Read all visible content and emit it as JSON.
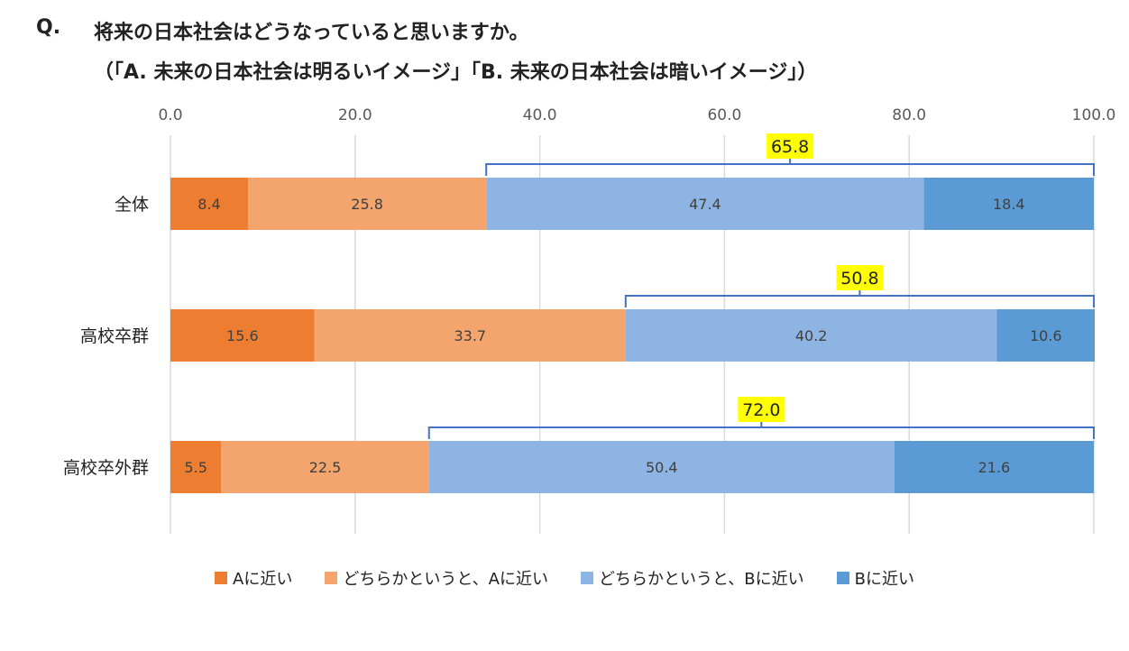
{
  "title": {
    "q_label": "Q.",
    "question": "将来の日本社会はどうなっていると思いますか。",
    "subtitle": "（「A.  未来の日本社会は明るいイメージ」「B.  未来の日本社会は暗いイメージ」）"
  },
  "chart_data": {
    "type": "bar",
    "orientation": "horizontal-stacked",
    "xlim": [
      0,
      100
    ],
    "x_ticks": [
      "0.0",
      "20.0",
      "40.0",
      "60.0",
      "80.0",
      "100.0"
    ],
    "grid": true,
    "categories": [
      "全体",
      "高校卒群",
      "高校卒外群"
    ],
    "series": [
      {
        "name": "Aに近い",
        "color": "#ED7D31",
        "values": [
          8.4,
          15.6,
          5.5
        ]
      },
      {
        "name": "どちらかというと、Aに近い",
        "color": "#F4A46D",
        "values": [
          25.8,
          33.7,
          22.5
        ]
      },
      {
        "name": "どちらかというと、Bに近い",
        "color": "#8DB4E2",
        "values": [
          47.4,
          40.2,
          50.4
        ]
      },
      {
        "name": "Bに近い",
        "color": "#5B9BD5",
        "values": [
          18.4,
          10.6,
          21.6
        ]
      }
    ],
    "annotations": [
      {
        "category": "全体",
        "label": "65.8",
        "from": 34.2,
        "to": 100
      },
      {
        "category": "高校卒群",
        "label": "50.8",
        "from": 49.3,
        "to": 100
      },
      {
        "category": "高校卒外群",
        "label": "72.0",
        "from": 28.0,
        "to": 100
      }
    ],
    "annotation_color": "#4472C4",
    "annotation_highlight": "#FFFF00",
    "legend_position": "bottom"
  }
}
